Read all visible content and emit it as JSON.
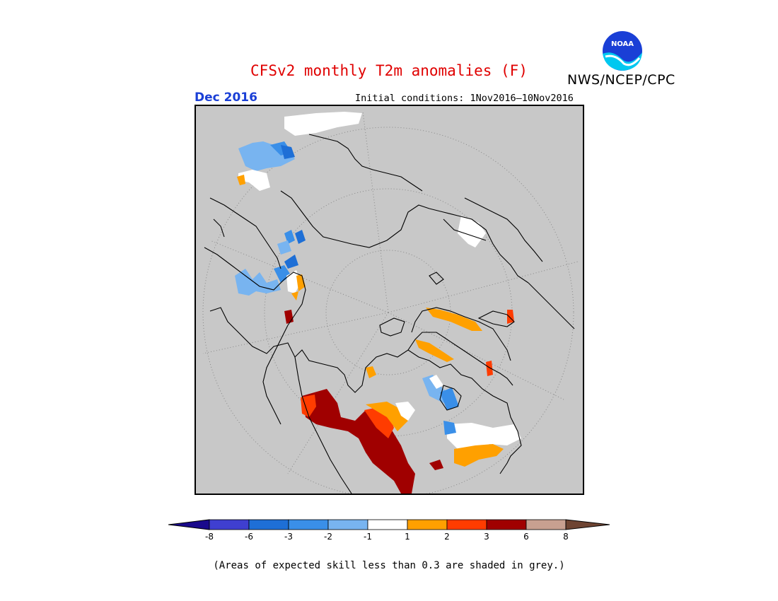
{
  "header": {
    "title": "CFSv2 monthly T2m anomalies (F)",
    "agency": "NWS/NCEP/CPC",
    "logo_text": "NOAA",
    "target_month": "Dec 2016",
    "initial_conditions": "Initial conditions: 1Nov2016–10Nov2016"
  },
  "map": {
    "projection": "north polar stereographic",
    "masked_color": "#c8c8c8",
    "skill_threshold": 0.3
  },
  "colorbar": {
    "labels": [
      "-8",
      "-6",
      "-3",
      "-2",
      "-1",
      "1",
      "2",
      "3",
      "6",
      "8"
    ],
    "colors": [
      "#1a0a8c",
      "#3f3fd0",
      "#1e6fd6",
      "#3a8fe8",
      "#78b4f0",
      "#ffffff",
      "#ffa000",
      "#ff3c00",
      "#a00000",
      "#c8a090",
      "#6e4432"
    ],
    "below_color": "#1a0a8c",
    "above_color": "#6e4432"
  },
  "footnote": "(Areas of expected skill less than 0.3 are shaded in grey.)"
}
